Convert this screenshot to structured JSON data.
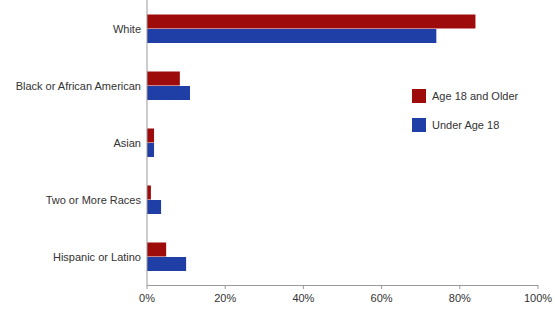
{
  "chart_data": {
    "type": "bar",
    "orientation": "horizontal",
    "categories": [
      "White",
      "Black or African American",
      "Asian",
      "Two or More Races",
      "Hispanic or Latino"
    ],
    "series": [
      {
        "name": "Age 18 and Older",
        "color": "#9e0b0b",
        "values": [
          84,
          8.4,
          1.8,
          1,
          4.9
        ]
      },
      {
        "name": "Under Age 18",
        "color": "#1f3ea6",
        "values": [
          74,
          11,
          1.8,
          3.6,
          10
        ]
      }
    ],
    "xlim": [
      0,
      100
    ],
    "xticks": [
      {
        "value": 0,
        "label": "0%"
      },
      {
        "value": 20,
        "label": "20%"
      },
      {
        "value": 40,
        "label": "40%"
      },
      {
        "value": 60,
        "label": "60%"
      },
      {
        "value": 80,
        "label": "80%"
      },
      {
        "value": 100,
        "label": "100%"
      }
    ],
    "grid": false,
    "legend": "right"
  }
}
